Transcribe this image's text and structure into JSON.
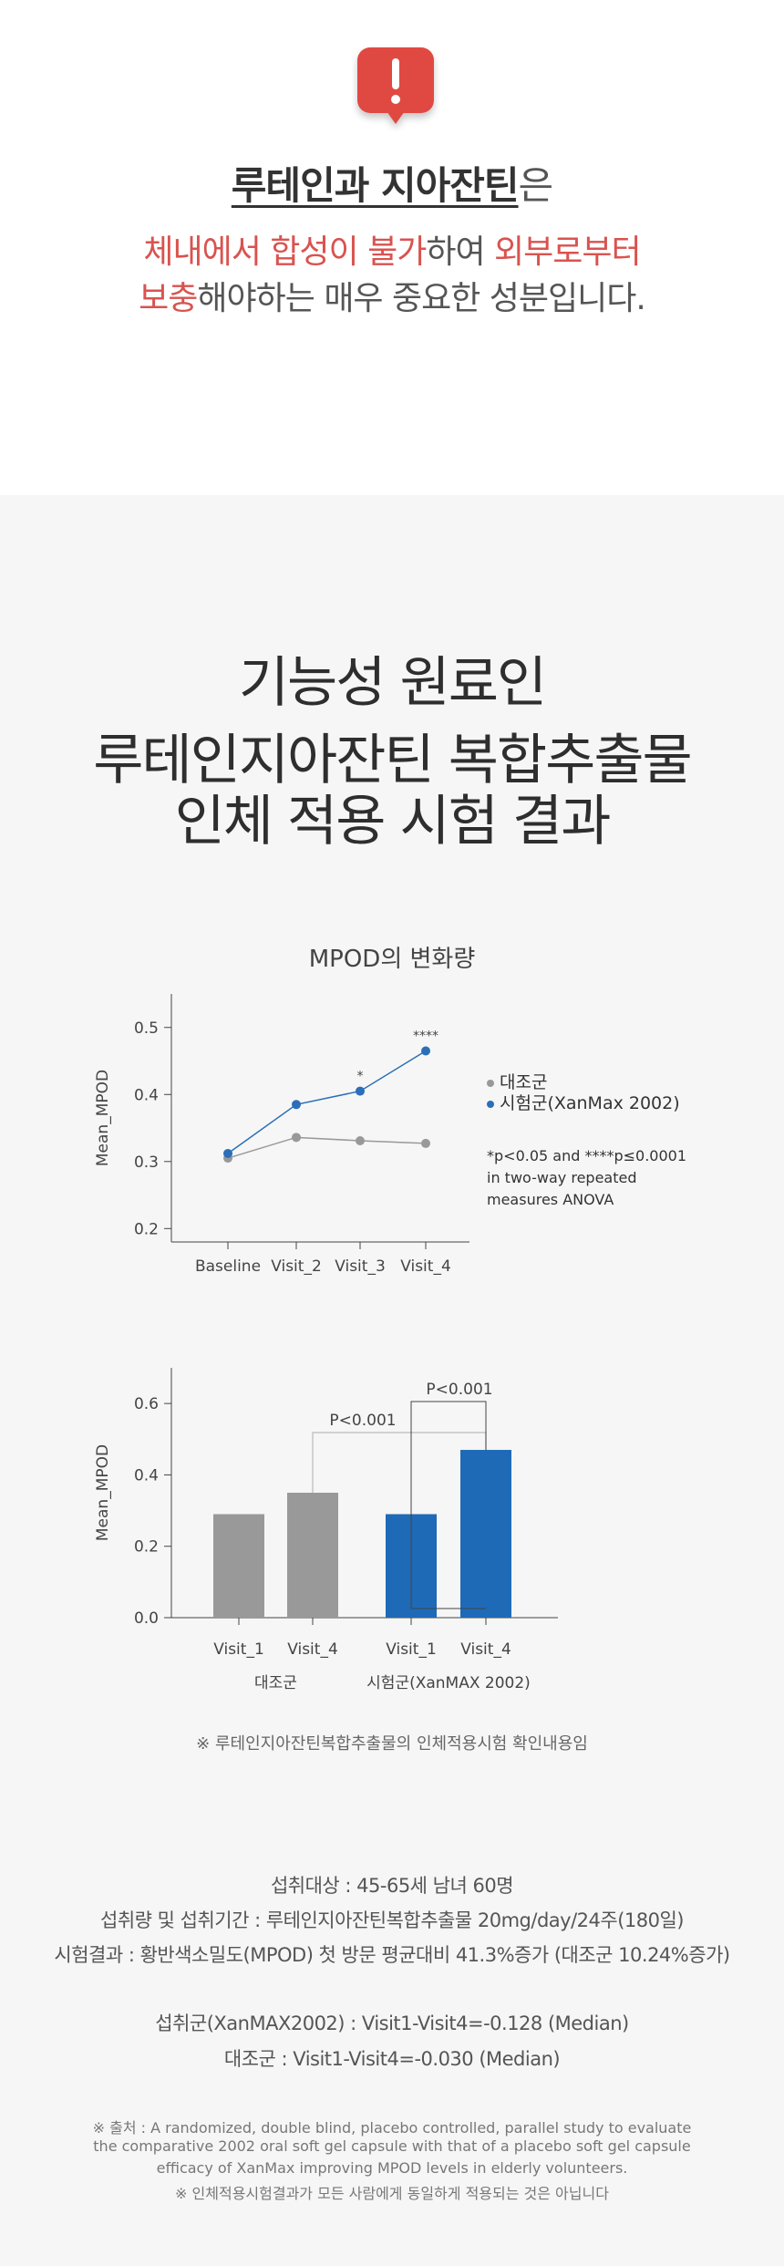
{
  "alert": {
    "icon": "exclamation-speech-bubble-icon",
    "color": "#e04a43"
  },
  "headline": {
    "highlight": "루테인과 지아잔틴",
    "tail": "은"
  },
  "sub_lines": [
    [
      {
        "text": "체내에서 합성이 불가",
        "red": true
      },
      {
        "text": "하여 ",
        "red": false
      },
      {
        "text": "외부로부터",
        "red": true
      }
    ],
    [
      {
        "text": "보충",
        "red": true
      },
      {
        "text": "해야하는 매우 중요한 성분입니다.",
        "red": false
      }
    ]
  ],
  "big_title": [
    "기능성 원료인",
    "루테인지아잔틴 복합추출물",
    "인체 적용 시험 결과"
  ],
  "chart_data": [
    {
      "type": "line",
      "title": "MPOD의 변화량",
      "categories": [
        "Baseline",
        "Visit_2",
        "Visit_3",
        "Visit_4"
      ],
      "ylabel": "Mean_MPOD",
      "xlabel": "",
      "ylim": [
        0.18,
        0.55
      ],
      "yticks": [
        "0.2",
        "0.3",
        "0.4",
        "0.5"
      ],
      "grid": false,
      "series": [
        {
          "name": "대조군",
          "values": [
            0.305,
            0.336,
            0.331,
            0.327
          ],
          "color": "#999999"
        },
        {
          "name": "시험군(XanMax 2002)",
          "values": [
            0.312,
            0.385,
            0.405,
            0.465
          ],
          "color": "#2a6fb8"
        }
      ],
      "annotations": [
        {
          "category": "Visit_3",
          "text": "*"
        },
        {
          "category": "Visit_4",
          "text": "****"
        }
      ],
      "legend_position": "right",
      "note": [
        "*p<0.05 and ****p≤0.0001",
        "in two-way repeated",
        "measures ANOVA"
      ]
    },
    {
      "type": "bar",
      "ylabel": "Mean_MPOD",
      "ylim": [
        0,
        0.7
      ],
      "yticks": [
        "0.0",
        "0.2",
        "0.4",
        "0.6"
      ],
      "groups": [
        {
          "name": "대조군",
          "categories": [
            "Visit_1",
            "Visit_4"
          ],
          "values": [
            0.29,
            0.35
          ],
          "color": "#999999"
        },
        {
          "name": "시험군(XanMAX 2002)",
          "categories": [
            "Visit_1",
            "Visit_4"
          ],
          "values": [
            0.29,
            0.47
          ],
          "color": "#1e6ab7"
        }
      ],
      "comparisons": [
        {
          "label": "P<0.001"
        },
        {
          "label": "P<0.001"
        }
      ]
    }
  ],
  "caption": "※ 루테인지아잔틴복합추출물의 인체적용시험 확인내용임",
  "info": [
    "섭취대상 : 45-65세 남녀 60명",
    "섭취량 및 섭취기간 : 루테인지아잔틴복합추출물  20mg/day/24주(180일)",
    "시험결과 : 황반색소밀도(MPOD) 첫 방문 평균대비 41.3%증가 (대조군 10.24%증가)",
    "섭취군(XanMAX2002) : Visit1-Visit4=-0.128 (Median)",
    "대조군 : Visit1-Visit4=-0.030 (Median)"
  ],
  "references": [
    "※ 출처 : A randomized, double blind, placebo controlled, parallel study to evaluate",
    "the comparative 2002 oral soft gel capsule with that of a placebo soft gel capsule",
    "efficacy of XanMax improving MPOD levels in elderly volunteers.",
    "※ 인체적용시험결과가 모든 사람에게 동일하게 적용되는 것은 아닙니다"
  ]
}
